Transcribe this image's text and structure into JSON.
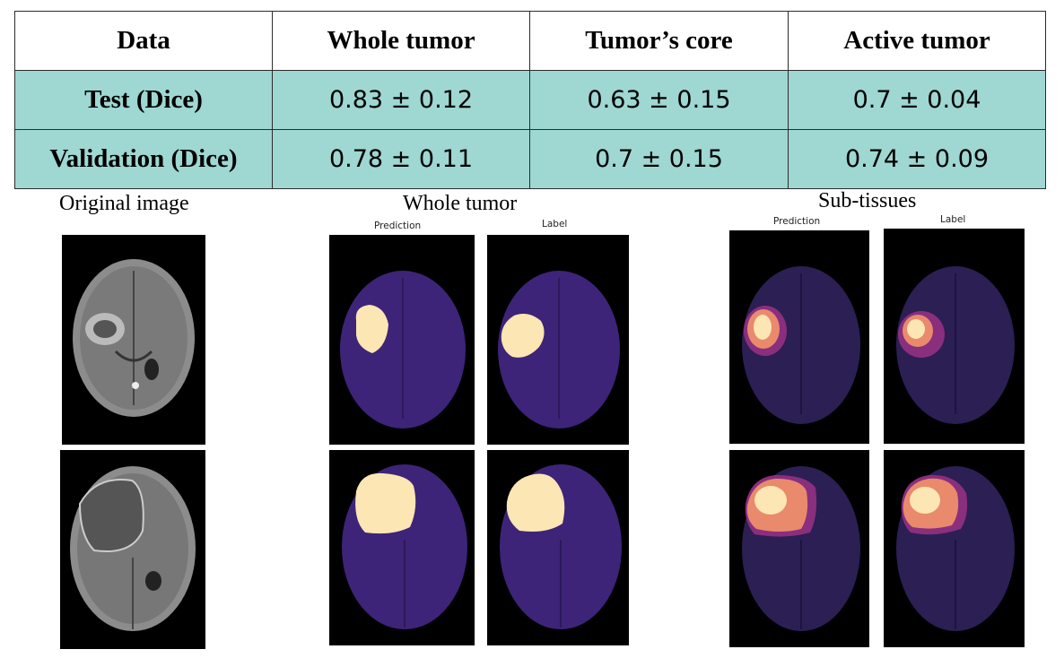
{
  "table": {
    "headers": [
      "Data",
      "Whole tumor",
      "Tumor’s core",
      "Active tumor"
    ],
    "rows": [
      {
        "label": "Test (Dice)",
        "values": [
          "0.83 ± 0.12",
          "0.63 ± 0.15",
          "0.7 ± 0.04"
        ]
      },
      {
        "label": "Validation (Dice)",
        "values": [
          "0.78 ± 0.11",
          "0.7 ± 0.15",
          "0.74 ± 0.09"
        ]
      }
    ]
  },
  "colors": {
    "row_background": "#9fd7d2",
    "brain_mask": "#3d2478",
    "tumor_whole": "#fbe6b4",
    "tumor_core": "#e98a6c",
    "tumor_edema": "#8a2e7e",
    "mri_gray": "#8c8c8c"
  },
  "figure": {
    "original_title": "Original image",
    "whole_title": "Whole tumor",
    "sub_title": "Sub-tissues",
    "whole_prediction_label": "Prediction",
    "whole_label_label": "Label",
    "sub_prediction_label": "Prediction",
    "sub_label_label": "Label"
  }
}
